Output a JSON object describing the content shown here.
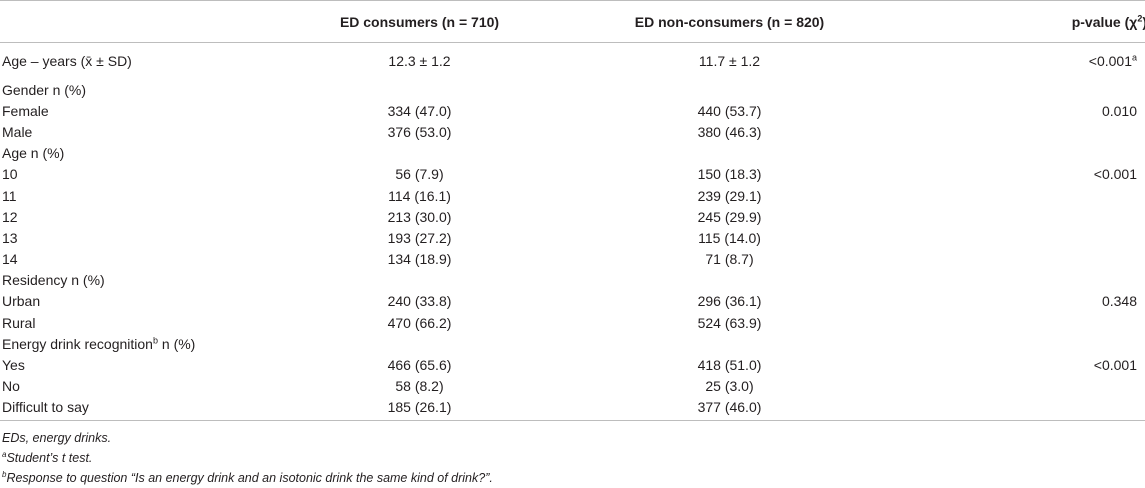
{
  "table": {
    "headers": {
      "col_a": "ED consumers (n = 710)",
      "col_b": "ED non-consumers (n = 820)",
      "col_p_main": "p-value (χ",
      "col_p_sup": "2",
      "col_p_end": ")"
    },
    "rows": [
      {
        "label": "Age – years (x̄ ± SD)",
        "a": "12.3 ± 1.2",
        "b": "11.7 ± 1.2",
        "p": "<0.001",
        "p_sup": "a"
      },
      {
        "label": "Gender n (%)",
        "a": "",
        "b": "",
        "p": ""
      },
      {
        "label": "Female",
        "a": "334 (47.0)",
        "b": "440 (53.7)",
        "p": "0.010"
      },
      {
        "label": "Male",
        "a": "376 (53.0)",
        "b": "380 (46.3)",
        "p": ""
      },
      {
        "label": "Age n (%)",
        "a": "",
        "b": "",
        "p": ""
      },
      {
        "label": "10",
        "a": "56 (7.9)",
        "b": "150 (18.3)",
        "p": "<0.001"
      },
      {
        "label": "11",
        "a": "114 (16.1)",
        "b": "239 (29.1)",
        "p": ""
      },
      {
        "label": "12",
        "a": "213 (30.0)",
        "b": "245 (29.9)",
        "p": ""
      },
      {
        "label": "13",
        "a": "193 (27.2)",
        "b": "115 (14.0)",
        "p": ""
      },
      {
        "label": "14",
        "a": "134 (18.9)",
        "b": "71 (8.7)",
        "p": ""
      },
      {
        "label": "Residency n (%)",
        "a": "",
        "b": "",
        "p": ""
      },
      {
        "label": "Urban",
        "a": "240 (33.8)",
        "b": "296 (36.1)",
        "p": "0.348"
      },
      {
        "label": "Rural",
        "a": "470 (66.2)",
        "b": "524 (63.9)",
        "p": ""
      },
      {
        "label": "Energy drink recognition",
        "label_sup": "b",
        "label_end": " n (%)",
        "a": "",
        "b": "",
        "p": ""
      },
      {
        "label": "Yes",
        "a": "466 (65.6)",
        "b": "418 (51.0)",
        "p": "<0.001"
      },
      {
        "label": "No",
        "a": "58 (8.2)",
        "b": "25 (3.0)",
        "p": ""
      },
      {
        "label": "Difficult to say",
        "a": "185 (26.1)",
        "b": "377 (46.0)",
        "p": ""
      }
    ]
  },
  "footnotes": {
    "abbrev": "EDs, energy drinks.",
    "a_marker": "a",
    "a_text": "Student’s t test.",
    "b_marker": "b",
    "b_text": "Response to question “Is an energy drink and an isotonic drink the same kind of drink?”."
  }
}
